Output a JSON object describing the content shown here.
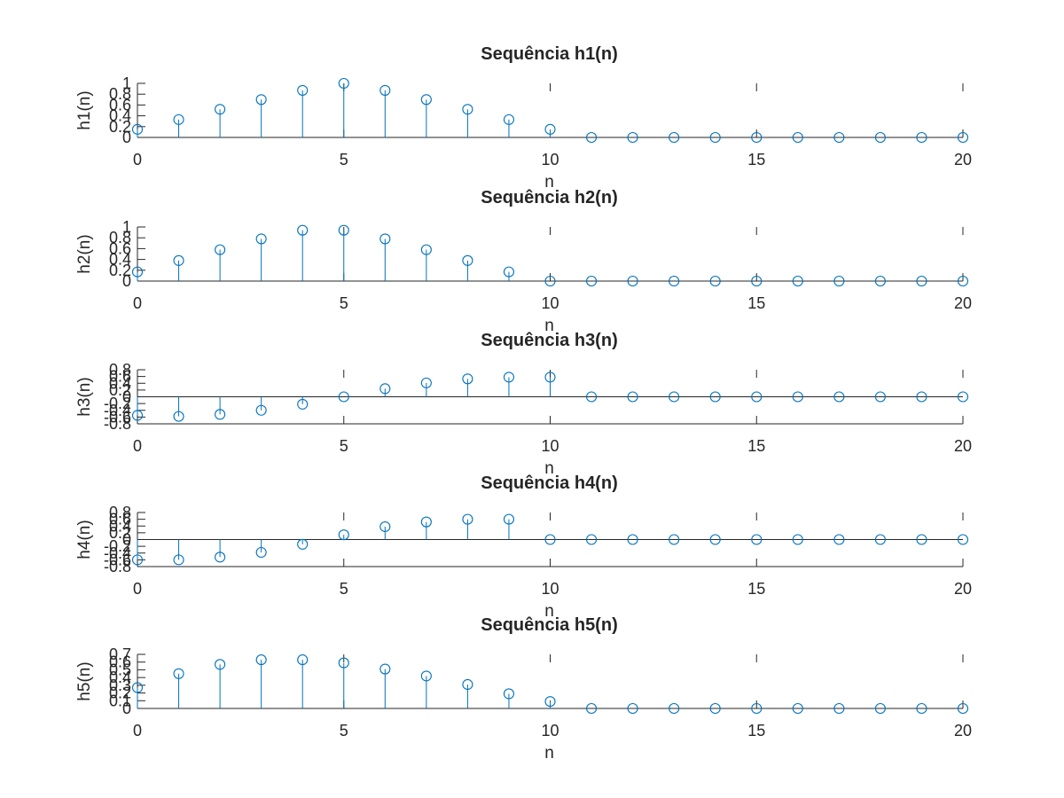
{
  "figure": {
    "background": "#ffffff",
    "marker_color": "#0072bd",
    "axis_color": "#262626"
  },
  "chart_data": [
    {
      "type": "stem",
      "title": "Sequência h1(n)",
      "xlabel": "n",
      "ylabel": "h1(n)",
      "xlim": [
        0,
        20
      ],
      "ylim": [
        0,
        1
      ],
      "xticks": [
        0,
        5,
        10,
        15,
        20
      ],
      "xtick_labels": [
        "0",
        "5",
        "10",
        "15",
        "20"
      ],
      "yticks": [
        0,
        0.2,
        0.4,
        0.6,
        0.8,
        1
      ],
      "ytick_labels": [
        "0",
        "0.2",
        "0.4",
        "0.6",
        "0.8",
        "1"
      ],
      "x": [
        0,
        1,
        2,
        3,
        4,
        5,
        6,
        7,
        8,
        9,
        10,
        11,
        12,
        13,
        14,
        15,
        16,
        17,
        18,
        19,
        20
      ],
      "values": [
        0.15,
        0.33,
        0.52,
        0.7,
        0.87,
        1.0,
        0.87,
        0.7,
        0.52,
        0.33,
        0.15,
        0,
        0,
        0,
        0,
        0,
        0,
        0,
        0,
        0,
        0
      ]
    },
    {
      "type": "stem",
      "title": "Sequência h2(n)",
      "xlabel": "n",
      "ylabel": "h2(n)",
      "xlim": [
        0,
        20
      ],
      "ylim": [
        0,
        1
      ],
      "xticks": [
        0,
        5,
        10,
        15,
        20
      ],
      "xtick_labels": [
        "0",
        "5",
        "10",
        "15",
        "20"
      ],
      "yticks": [
        0,
        0.2,
        0.4,
        0.6,
        0.8,
        1
      ],
      "ytick_labels": [
        "0",
        "0.2",
        "0.4",
        "0.6",
        "0.8",
        "1"
      ],
      "x": [
        0,
        1,
        2,
        3,
        4,
        5,
        6,
        7,
        8,
        9,
        10,
        11,
        12,
        13,
        14,
        15,
        16,
        17,
        18,
        19,
        20
      ],
      "values": [
        0.17,
        0.38,
        0.58,
        0.78,
        0.94,
        0.94,
        0.78,
        0.58,
        0.38,
        0.17,
        0,
        0,
        0,
        0,
        0,
        0,
        0,
        0,
        0,
        0,
        0
      ]
    },
    {
      "type": "stem",
      "title": "Sequência h3(n)",
      "xlabel": "n",
      "ylabel": "h3(n)",
      "xlim": [
        0,
        20
      ],
      "ylim": [
        -0.8,
        0.8
      ],
      "xticks": [
        0,
        5,
        10,
        15,
        20
      ],
      "xtick_labels": [
        "0",
        "5",
        "10",
        "15",
        "20"
      ],
      "yticks": [
        -0.8,
        -0.6,
        -0.4,
        -0.2,
        0,
        0.2,
        0.4,
        0.6,
        0.8
      ],
      "ytick_labels": [
        "-0.8",
        "-0.6",
        "-0.4",
        "-0.2",
        "0",
        "0.2",
        "0.4",
        "0.6",
        "0.8"
      ],
      "x": [
        0,
        1,
        2,
        3,
        4,
        5,
        6,
        7,
        8,
        9,
        10,
        11,
        12,
        13,
        14,
        15,
        16,
        17,
        18,
        19,
        20
      ],
      "values": [
        -0.55,
        -0.58,
        -0.52,
        -0.4,
        -0.22,
        0,
        0.24,
        0.41,
        0.53,
        0.58,
        0.58,
        0,
        0,
        0,
        0,
        0,
        0,
        0,
        0,
        0,
        0
      ]
    },
    {
      "type": "stem",
      "title": "Sequência h4(n)",
      "xlabel": "n",
      "ylabel": "h4(n)",
      "xlim": [
        0,
        20
      ],
      "ylim": [
        -0.8,
        0.8
      ],
      "xticks": [
        0,
        5,
        10,
        15,
        20
      ],
      "xtick_labels": [
        "0",
        "5",
        "10",
        "15",
        "20"
      ],
      "yticks": [
        -0.8,
        -0.6,
        -0.4,
        -0.2,
        0,
        0.2,
        0.4,
        0.6,
        0.8
      ],
      "ytick_labels": [
        "-0.8",
        "-0.6",
        "-0.4",
        "-0.2",
        "0",
        "0.2",
        "0.4",
        "0.6",
        "0.8"
      ],
      "x": [
        0,
        1,
        2,
        3,
        4,
        5,
        6,
        7,
        8,
        9,
        10,
        11,
        12,
        13,
        14,
        15,
        16,
        17,
        18,
        19,
        20
      ],
      "values": [
        -0.6,
        -0.6,
        -0.52,
        -0.38,
        -0.14,
        0.14,
        0.38,
        0.52,
        0.6,
        0.6,
        0,
        0,
        0,
        0,
        0,
        0,
        0,
        0,
        0,
        0,
        0
      ]
    },
    {
      "type": "stem",
      "title": "Sequência h5(n)",
      "xlabel": "n",
      "ylabel": "h5(n)",
      "xlim": [
        0,
        20
      ],
      "ylim": [
        0,
        0.7
      ],
      "xticks": [
        0,
        5,
        10,
        15,
        20
      ],
      "xtick_labels": [
        "0",
        "5",
        "10",
        "15",
        "20"
      ],
      "yticks": [
        0,
        0.1,
        0.2,
        0.3,
        0.4,
        0.5,
        0.6,
        0.7
      ],
      "ytick_labels": [
        "0",
        "0.1",
        "0.2",
        "0.3",
        "0.4",
        "0.5",
        "0.6",
        "0.7"
      ],
      "x": [
        0,
        1,
        2,
        3,
        4,
        5,
        6,
        7,
        8,
        9,
        10,
        11,
        12,
        13,
        14,
        15,
        16,
        17,
        18,
        19,
        20
      ],
      "values": [
        0.27,
        0.45,
        0.57,
        0.63,
        0.63,
        0.59,
        0.51,
        0.42,
        0.31,
        0.19,
        0.09,
        0,
        0,
        0,
        0,
        0,
        0,
        0,
        0,
        0,
        0
      ]
    }
  ]
}
